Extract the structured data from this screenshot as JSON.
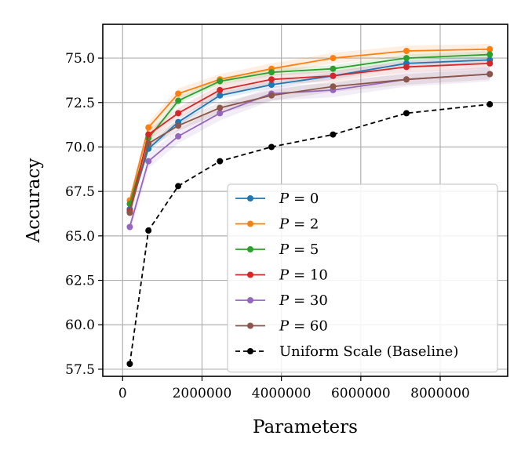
{
  "chart_data": {
    "type": "line",
    "title": "",
    "xlabel": "Parameters",
    "ylabel": "Accuracy",
    "xlim": [
      -500000,
      9700000
    ],
    "ylim": [
      57.1,
      76.9
    ],
    "x_ticks": [
      0,
      2000000,
      4000000,
      6000000,
      8000000
    ],
    "x_tick_labels": [
      "0",
      "2000000",
      "4000000",
      "6000000",
      "8000000"
    ],
    "y_ticks": [
      57.5,
      60.0,
      62.5,
      65.0,
      67.5,
      70.0,
      72.5,
      75.0
    ],
    "y_tick_labels": [
      "57.5",
      "60.0",
      "62.5",
      "65.0",
      "67.5",
      "70.0",
      "72.5",
      "75.0"
    ],
    "grid": true,
    "legend_position": "lower-right",
    "x": [
      180000,
      650000,
      1400000,
      2450000,
      3750000,
      5300000,
      7150000,
      9250000
    ],
    "series": [
      {
        "name_prefix": "P",
        "name_value": "= 0",
        "color": "#1f77b4",
        "style": "solid",
        "values": [
          66.5,
          69.9,
          71.4,
          72.9,
          73.5,
          74.0,
          74.7,
          74.9
        ],
        "band": 0.2
      },
      {
        "name_prefix": "P",
        "name_value": "= 2",
        "color": "#ff7f0e",
        "style": "solid",
        "values": [
          67.0,
          71.1,
          73.0,
          73.8,
          74.4,
          75.0,
          75.4,
          75.5
        ],
        "band": 0.3
      },
      {
        "name_prefix": "P",
        "name_value": "= 5",
        "color": "#2ca02c",
        "style": "solid",
        "values": [
          66.8,
          70.5,
          72.6,
          73.7,
          74.2,
          74.4,
          75.0,
          75.2
        ],
        "band": 0.2
      },
      {
        "name_prefix": "P",
        "name_value": "= 10",
        "color": "#d62728",
        "style": "solid",
        "values": [
          66.4,
          70.7,
          71.9,
          73.2,
          73.8,
          74.0,
          74.5,
          74.7
        ],
        "band": 0.3
      },
      {
        "name_prefix": "P",
        "name_value": "= 30",
        "color": "#9467bd",
        "style": "solid",
        "values": [
          65.5,
          69.2,
          70.6,
          71.9,
          73.0,
          73.2,
          73.8,
          74.1
        ],
        "band": 0.4
      },
      {
        "name_prefix": "P",
        "name_value": "= 60",
        "color": "#8c564b",
        "style": "solid",
        "values": [
          66.3,
          70.2,
          71.2,
          72.2,
          72.9,
          73.4,
          73.8,
          74.1
        ],
        "band": 0.3
      },
      {
        "name": "Uniform Scale (Baseline)",
        "color": "#000000",
        "style": "dashed",
        "values": [
          57.8,
          65.3,
          67.8,
          69.2,
          70.0,
          70.7,
          71.9,
          72.4
        ],
        "band": 0
      }
    ]
  }
}
